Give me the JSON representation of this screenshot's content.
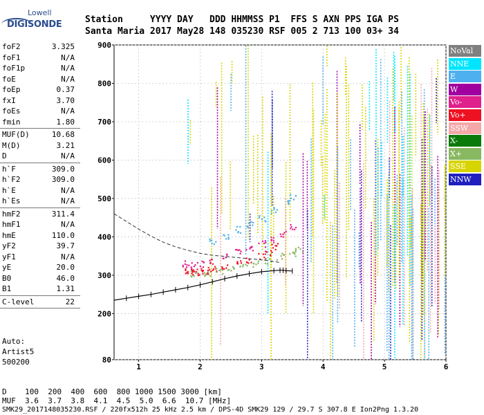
{
  "logo": {
    "line1": "Lowell",
    "line2": "DIGISONDE"
  },
  "header": {
    "line1": "Station     YYYY DAY   DDD HHMMSS P1  FFS S AXN PPS IGA PS",
    "line2": "Santa Maria 2017 May28 148 035230 RSF 005 2 713 100 03+ 34"
  },
  "params": {
    "group1": [
      {
        "name": "foF2",
        "value": "3.325"
      },
      {
        "name": "foF1",
        "value": "N/A"
      },
      {
        "name": "foF1p",
        "value": "N/A"
      },
      {
        "name": "foE",
        "value": "N/A"
      },
      {
        "name": "foEp",
        "value": "0.37"
      },
      {
        "name": "fxI",
        "value": "3.70"
      },
      {
        "name": "foEs",
        "value": "N/A"
      },
      {
        "name": "fmin",
        "value": "1.80"
      }
    ],
    "group2": [
      {
        "name": "MUF(D)",
        "value": "10.68"
      },
      {
        "name": "M(D)",
        "value": "3.21"
      },
      {
        "name": "D",
        "value": "N/A"
      }
    ],
    "group3": [
      {
        "name": "h`F",
        "value": "309.0"
      },
      {
        "name": "h`F2",
        "value": "309.0"
      },
      {
        "name": "h`E",
        "value": "N/A"
      },
      {
        "name": "h`Es",
        "value": "N/A"
      }
    ],
    "group4": [
      {
        "name": "hmF2",
        "value": "311.4"
      },
      {
        "name": "hmF1",
        "value": "N/A"
      },
      {
        "name": "hmE",
        "value": "110.0"
      },
      {
        "name": "yF2",
        "value": "39.7"
      },
      {
        "name": "yF1",
        "value": "N/A"
      },
      {
        "name": "yE",
        "value": "20.0"
      },
      {
        "name": "B0",
        "value": "46.0"
      },
      {
        "name": "B1",
        "value": "1.31"
      }
    ],
    "group5": [
      {
        "name": "C-level",
        "value": "22"
      }
    ],
    "scaler": [
      "Auto:",
      "Artist5",
      "500200"
    ]
  },
  "legend": [
    {
      "label": "NoVal",
      "color": "#808080"
    },
    {
      "label": "NNE",
      "color": "#00e5ff"
    },
    {
      "label": "E",
      "color": "#4fb0f0"
    },
    {
      "label": "W",
      "color": "#a000a0"
    },
    {
      "label": "Vo-",
      "color": "#e0208c"
    },
    {
      "label": "Vo+",
      "color": "#ee1122"
    },
    {
      "label": "SSW",
      "color": "#f4a8a8"
    },
    {
      "label": "X-",
      "color": "#0a7a0a"
    },
    {
      "label": "X+",
      "color": "#88b860"
    },
    {
      "label": "SSE",
      "color": "#d8d400"
    },
    {
      "label": "NNW",
      "color": "#2020c0"
    }
  ],
  "footer": {
    "line1": "D    100  200  400  600  800 1000 1500 3000 [km]",
    "line2": "MUF  3.6  3.7  3.8  4.1  4.5  5.0  6.6  10.7 [MHz]",
    "line3": "SMK29_2017148035230.RSF / 220fx512h 25 kHz 2.5 km / DPS-4D SMK29 129 / 29.7 S 307.8 E Ion2Png 1.3.20"
  },
  "chart_data": {
    "type": "scatter",
    "title": "",
    "xlabel": "",
    "ylabel": "",
    "xlim": [
      0.6,
      6.0
    ],
    "ylim": [
      80,
      900
    ],
    "xticks": [
      1,
      2,
      3,
      4,
      5,
      6
    ],
    "yticks": [
      80,
      200,
      300,
      400,
      500,
      600,
      700,
      800,
      900
    ],
    "grid": true,
    "legend_position": "right",
    "series": [
      {
        "color": "#ee1122",
        "x": [
          1.8,
          1.85,
          1.9,
          2.0,
          2.1,
          2.2,
          2.4,
          2.6,
          2.8,
          3.0,
          3.1,
          3.2
        ],
        "y": [
          312,
          310,
          310,
          311,
          313,
          316,
          322,
          331,
          340,
          352,
          362,
          375
        ]
      },
      {
        "color": "#e0208c",
        "x": [
          1.75,
          1.85,
          2.0,
          2.2,
          2.4,
          2.6,
          2.8,
          3.0,
          3.2,
          3.35,
          3.5
        ],
        "y": [
          330,
          328,
          332,
          340,
          350,
          360,
          372,
          384,
          396,
          410,
          425
        ]
      },
      {
        "color": "#88b860",
        "x": [
          1.9,
          2.1,
          2.3,
          2.5,
          2.7,
          2.9,
          3.1,
          3.3,
          3.5,
          3.6
        ],
        "y": [
          305,
          308,
          312,
          318,
          324,
          332,
          340,
          350,
          360,
          368
        ]
      },
      {
        "color": "#4fb0f0",
        "x": [
          2.2,
          2.4,
          2.6,
          2.8,
          3.0,
          3.2,
          3.4,
          3.5
        ],
        "y": [
          390,
          405,
          420,
          435,
          450,
          470,
          490,
          505
        ]
      }
    ],
    "profile_line": {
      "x": [
        0.6,
        0.8,
        1.0,
        1.2,
        1.4,
        1.6,
        1.8,
        2.0,
        2.2,
        2.4,
        2.6,
        2.8,
        3.0,
        3.2,
        3.3,
        3.35,
        3.4,
        3.5
      ],
      "y": [
        235,
        240,
        245,
        250,
        256,
        262,
        268,
        275,
        283,
        291,
        298,
        304,
        309,
        312,
        313,
        313,
        312,
        311
      ]
    },
    "dashed_line": {
      "x": [
        0.6,
        0.8,
        1.0,
        1.2,
        1.4,
        1.6,
        1.8,
        2.0,
        2.2,
        2.4,
        2.6,
        2.8,
        3.0,
        3.2,
        3.3
      ],
      "y": [
        460,
        440,
        420,
        402,
        386,
        374,
        365,
        357,
        352,
        349,
        346,
        343,
        340,
        336,
        333
      ]
    }
  }
}
